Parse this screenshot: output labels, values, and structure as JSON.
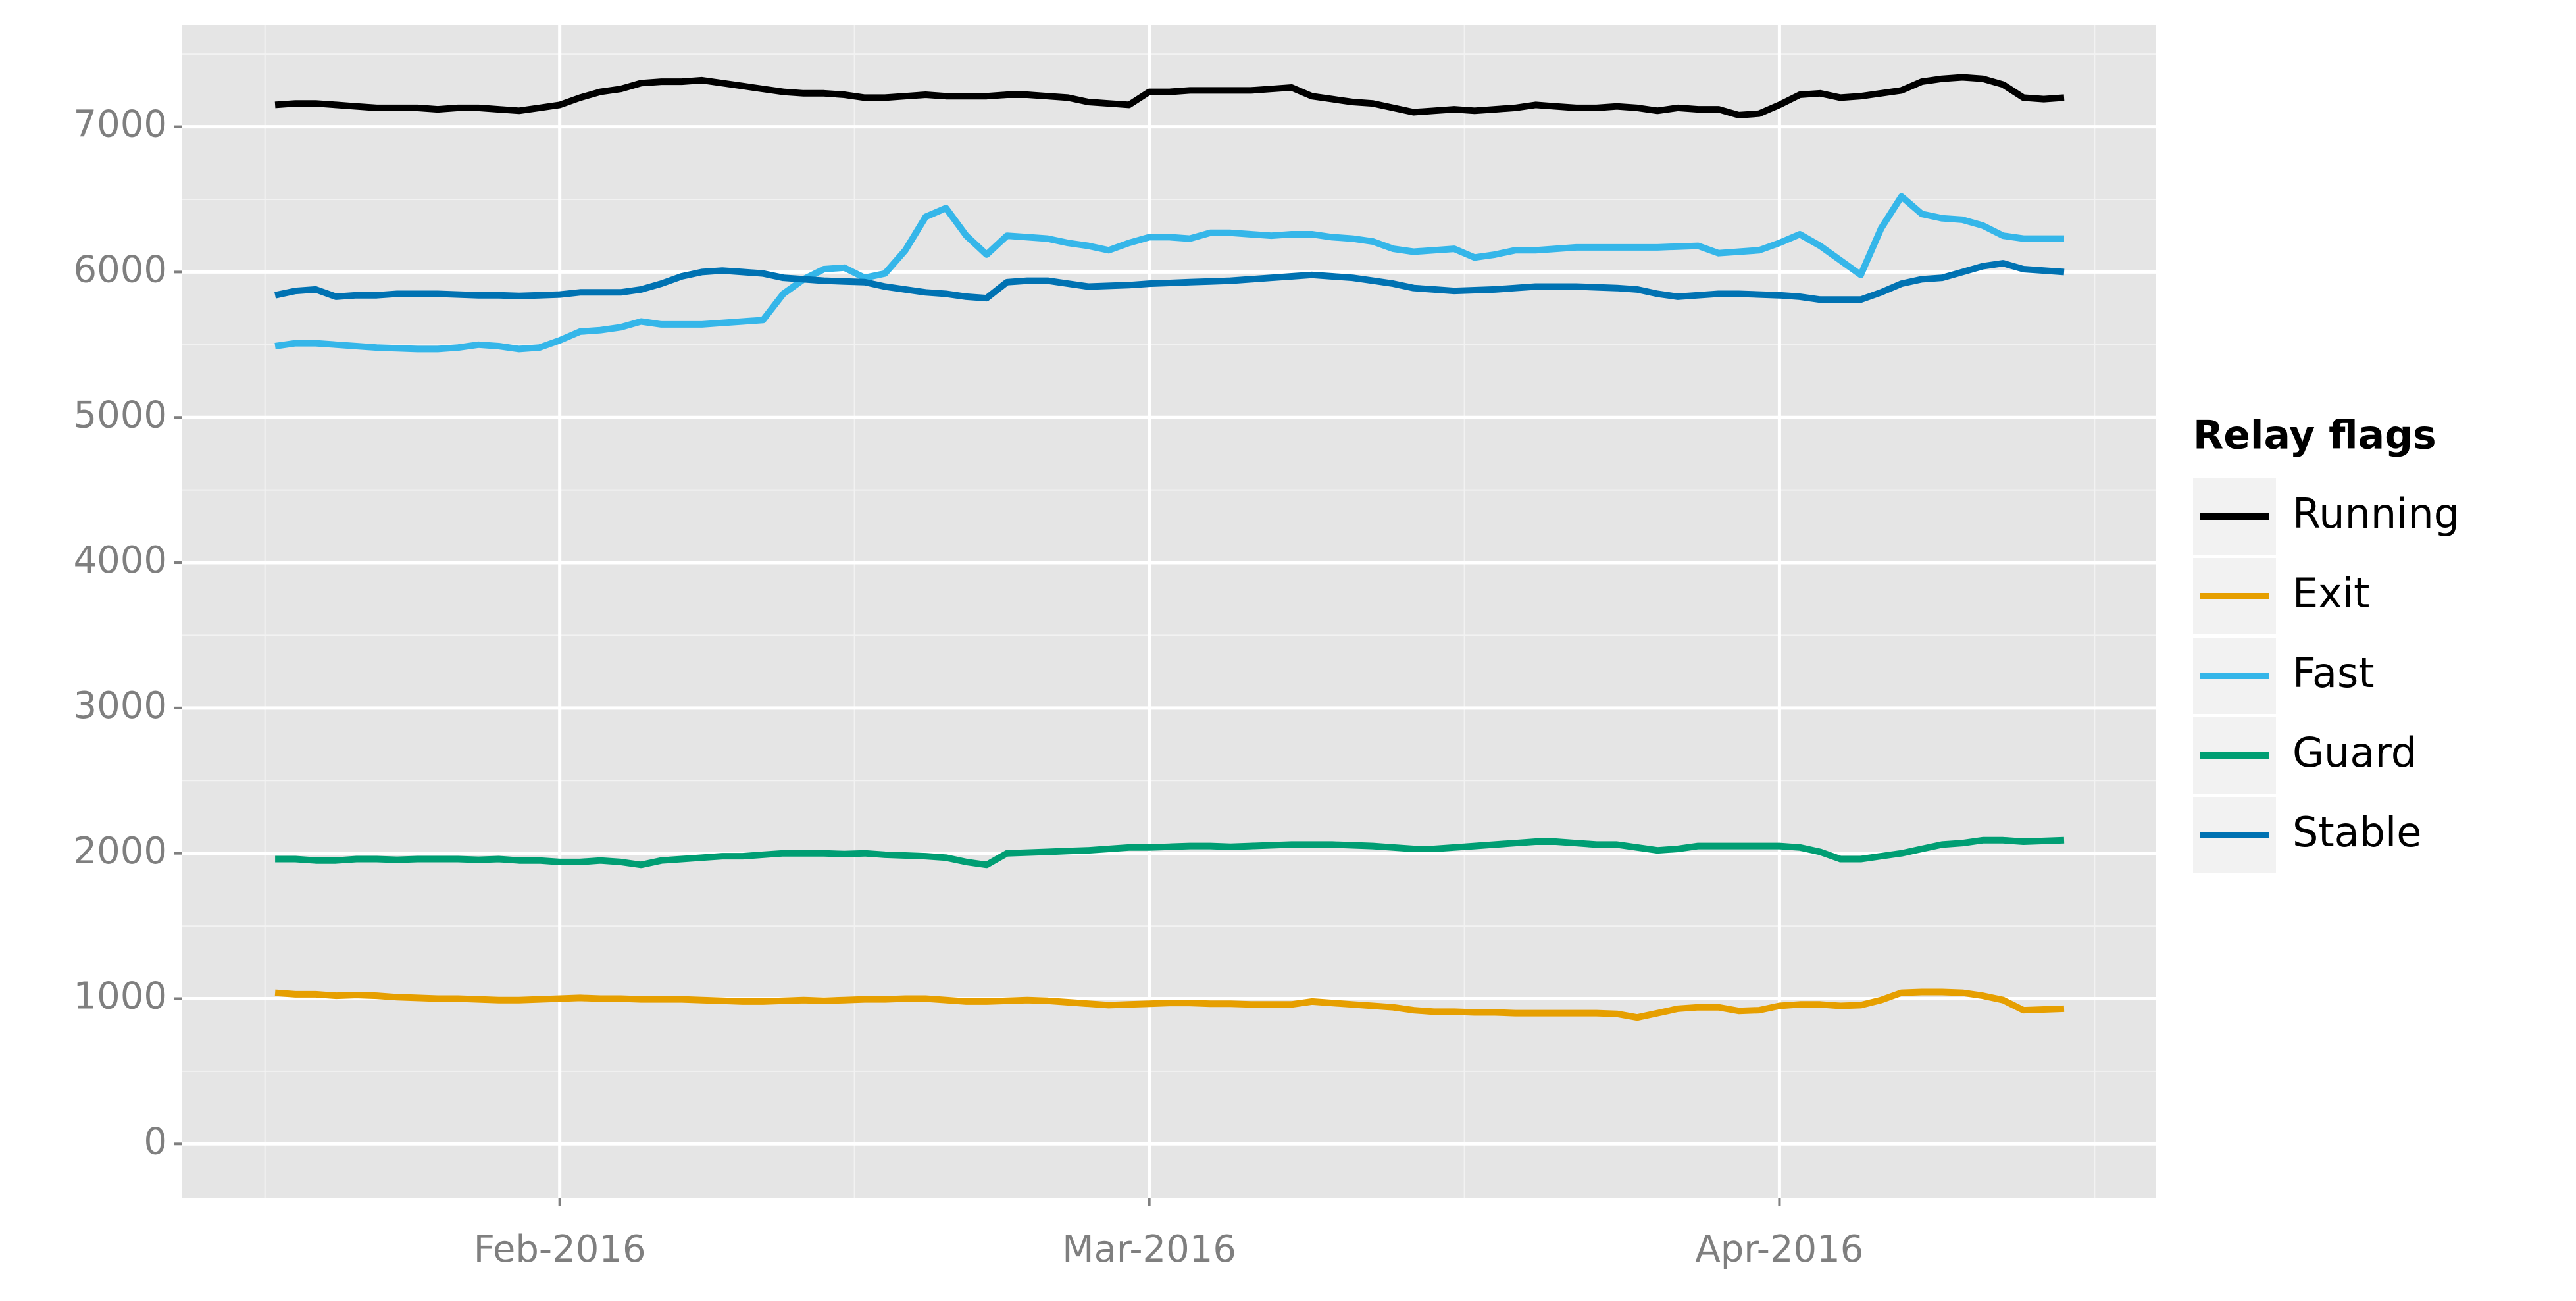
{
  "chart_data": {
    "type": "line",
    "legend_title": "Relay flags",
    "categories": [
      null,
      null,
      null,
      null,
      null,
      null,
      null,
      null,
      null,
      null,
      null,
      null,
      null,
      null,
      "Feb-2016",
      null,
      null,
      null,
      null,
      null,
      null,
      null,
      null,
      null,
      null,
      null,
      null,
      null,
      null,
      null,
      null,
      null,
      null,
      null,
      null,
      null,
      null,
      null,
      null,
      null,
      null,
      null,
      null,
      "Mar-2016",
      null,
      null,
      null,
      null,
      null,
      null,
      null,
      null,
      null,
      null,
      null,
      null,
      null,
      null,
      null,
      null,
      null,
      null,
      null,
      null,
      null,
      null,
      null,
      null,
      null,
      null,
      null,
      null,
      null,
      null,
      "Apr-2016",
      null,
      null,
      null,
      null,
      null,
      null,
      null,
      null,
      null,
      null,
      null,
      null,
      null,
      null
    ],
    "series": [
      {
        "name": "Running",
        "color": "#000000",
        "values": [
          7150,
          7160,
          7160,
          7150,
          7140,
          7130,
          7130,
          7130,
          7120,
          7130,
          7130,
          7120,
          7110,
          7130,
          7150,
          7200,
          7240,
          7260,
          7300,
          7310,
          7310,
          7320,
          7300,
          7280,
          7260,
          7240,
          7230,
          7230,
          7220,
          7200,
          7200,
          7210,
          7220,
          7210,
          7210,
          7210,
          7220,
          7220,
          7210,
          7200,
          7170,
          7160,
          7150,
          7240,
          7240,
          7250,
          7250,
          7250,
          7250,
          7260,
          7270,
          7210,
          7190,
          7170,
          7160,
          7130,
          7100,
          7110,
          7120,
          7110,
          7120,
          7130,
          7150,
          7140,
          7130,
          7130,
          7140,
          7130,
          7110,
          7130,
          7120,
          7120,
          7080,
          7090,
          7150,
          7220,
          7230,
          7200,
          7210,
          7230,
          7250,
          7310,
          7330,
          7340,
          7330,
          7290,
          7200,
          7190,
          7200
        ]
      },
      {
        "name": "Exit",
        "color": "#e69f00",
        "values": [
          1040,
          1030,
          1030,
          1020,
          1025,
          1020,
          1010,
          1005,
          1000,
          1000,
          995,
          990,
          990,
          995,
          1000,
          1005,
          1000,
          1000,
          995,
          995,
          995,
          990,
          985,
          980,
          980,
          985,
          990,
          985,
          990,
          995,
          995,
          1000,
          1000,
          990,
          980,
          980,
          985,
          990,
          985,
          975,
          965,
          955,
          960,
          965,
          970,
          970,
          965,
          965,
          960,
          960,
          960,
          980,
          970,
          960,
          950,
          940,
          920,
          910,
          910,
          905,
          905,
          900,
          900,
          900,
          900,
          900,
          895,
          870,
          900,
          930,
          940,
          940,
          915,
          920,
          950,
          960,
          960,
          950,
          955,
          990,
          1040,
          1045,
          1045,
          1040,
          1020,
          990,
          920,
          925,
          930
        ]
      },
      {
        "name": "Fast",
        "color": "#35b6e9",
        "values": [
          5490,
          5510,
          5510,
          5500,
          5490,
          5480,
          5475,
          5470,
          5470,
          5480,
          5500,
          5490,
          5470,
          5480,
          5530,
          5590,
          5600,
          5620,
          5660,
          5640,
          5640,
          5640,
          5650,
          5660,
          5670,
          5850,
          5950,
          6020,
          6030,
          5960,
          5990,
          6150,
          6380,
          6440,
          6250,
          6120,
          6250,
          6240,
          6230,
          6200,
          6180,
          6150,
          6200,
          6240,
          6240,
          6230,
          6270,
          6270,
          6260,
          6250,
          6260,
          6260,
          6240,
          6230,
          6210,
          6160,
          6140,
          6150,
          6160,
          6100,
          6120,
          6150,
          6150,
          6160,
          6170,
          6170,
          6170,
          6170,
          6170,
          6175,
          6180,
          6130,
          6140,
          6150,
          6200,
          6260,
          6180,
          6080,
          5980,
          6300,
          6520,
          6400,
          6370,
          6360,
          6320,
          6250,
          6230,
          6230,
          6230
        ]
      },
      {
        "name": "Guard",
        "color": "#009e73",
        "values": [
          1960,
          1960,
          1950,
          1950,
          1960,
          1960,
          1955,
          1960,
          1960,
          1960,
          1955,
          1960,
          1950,
          1950,
          1940,
          1940,
          1950,
          1940,
          1920,
          1950,
          1960,
          1970,
          1980,
          1980,
          1990,
          2000,
          2000,
          2000,
          1995,
          2000,
          1990,
          1985,
          1980,
          1970,
          1940,
          1920,
          2000,
          2005,
          2010,
          2015,
          2020,
          2030,
          2040,
          2040,
          2045,
          2050,
          2050,
          2045,
          2050,
          2055,
          2060,
          2060,
          2060,
          2055,
          2050,
          2040,
          2030,
          2030,
          2040,
          2050,
          2060,
          2070,
          2080,
          2080,
          2070,
          2060,
          2060,
          2040,
          2020,
          2030,
          2050,
          2050,
          2050,
          2050,
          2050,
          2040,
          2010,
          1960,
          1960,
          1980,
          2000,
          2030,
          2060,
          2070,
          2090,
          2090,
          2080,
          2085,
          2090
        ]
      },
      {
        "name": "Stable",
        "color": "#0072b2",
        "values": [
          5840,
          5870,
          5880,
          5830,
          5840,
          5840,
          5850,
          5850,
          5850,
          5845,
          5840,
          5840,
          5835,
          5840,
          5845,
          5860,
          5860,
          5860,
          5880,
          5920,
          5970,
          6000,
          6010,
          6000,
          5990,
          5960,
          5950,
          5940,
          5935,
          5930,
          5900,
          5880,
          5860,
          5850,
          5830,
          5820,
          5930,
          5940,
          5940,
          5920,
          5900,
          5905,
          5910,
          5920,
          5925,
          5930,
          5935,
          5940,
          5950,
          5960,
          5970,
          5980,
          5970,
          5960,
          5940,
          5920,
          5890,
          5880,
          5870,
          5875,
          5880,
          5890,
          5900,
          5900,
          5900,
          5895,
          5890,
          5880,
          5850,
          5830,
          5840,
          5850,
          5850,
          5845,
          5840,
          5830,
          5810,
          5810,
          5810,
          5860,
          5920,
          5950,
          5960,
          6000,
          6040,
          6060,
          6020,
          6010,
          6000
        ]
      }
    ],
    "ylim": [
      -370,
      7700
    ],
    "yticks": [
      0,
      1000,
      2000,
      3000,
      4000,
      5000,
      6000,
      7000
    ],
    "grid": true
  }
}
